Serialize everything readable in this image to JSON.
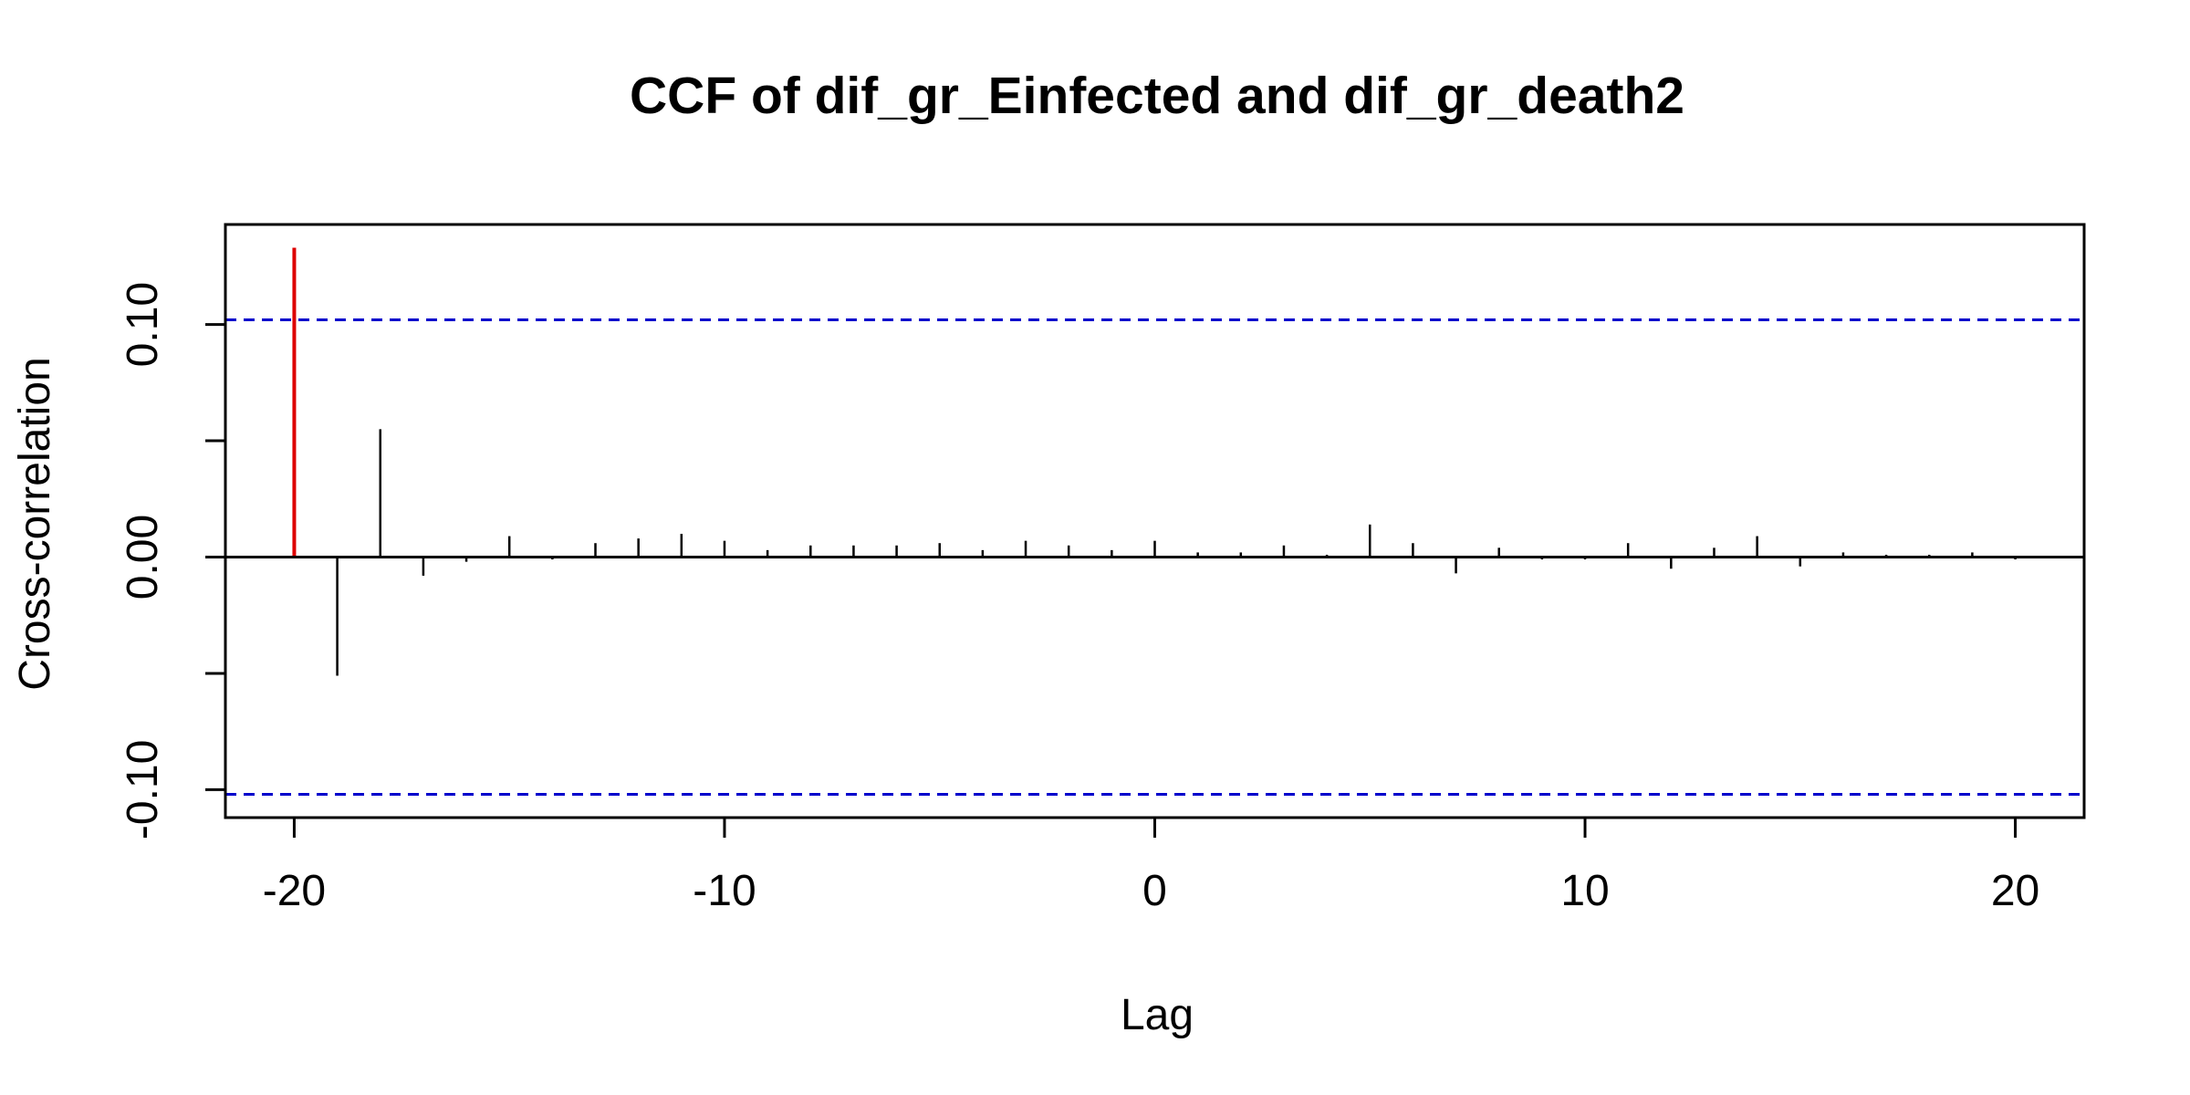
{
  "chart_data": {
    "type": "bar",
    "title": "CCF of dif_gr_Einfected and dif_gr_death2",
    "xlabel": "Lag",
    "ylabel": "Cross-correlation",
    "xlim": [
      -21.6,
      21.6
    ],
    "ylim": [
      -0.112,
      0.143
    ],
    "x_ticks": [
      -20,
      -10,
      0,
      10,
      20
    ],
    "y_ticks": [
      -0.1,
      -0.05,
      0.0,
      0.05,
      0.1
    ],
    "y_tick_labels": [
      "-0.10",
      "",
      "0.00",
      "",
      "0.10"
    ],
    "confidence_bound": 0.102,
    "confidence_line_color": "#0000cc",
    "bar_color": "#000000",
    "highlight_color": "#dd0000",
    "highlight_lag": -20,
    "lags": [
      -20,
      -19,
      -18,
      -17,
      -16,
      -15,
      -14,
      -13,
      -12,
      -11,
      -10,
      -9,
      -8,
      -7,
      -6,
      -5,
      -4,
      -3,
      -2,
      -1,
      0,
      1,
      2,
      3,
      4,
      5,
      6,
      7,
      8,
      9,
      10,
      11,
      12,
      13,
      14,
      15,
      16,
      17,
      18,
      19,
      20
    ],
    "values": [
      0.133,
      -0.051,
      0.055,
      -0.008,
      -0.002,
      0.009,
      -0.001,
      0.006,
      0.008,
      0.01,
      0.007,
      0.003,
      0.005,
      0.005,
      0.005,
      0.006,
      0.003,
      0.007,
      0.005,
      0.003,
      0.007,
      0.002,
      0.002,
      0.005,
      0.001,
      0.014,
      0.006,
      -0.007,
      0.004,
      -0.001,
      -0.001,
      0.006,
      -0.005,
      0.004,
      0.009,
      -0.004,
      0.002,
      0.001,
      0.001,
      0.002,
      -0.001
    ],
    "grid": false,
    "legend": "none"
  }
}
